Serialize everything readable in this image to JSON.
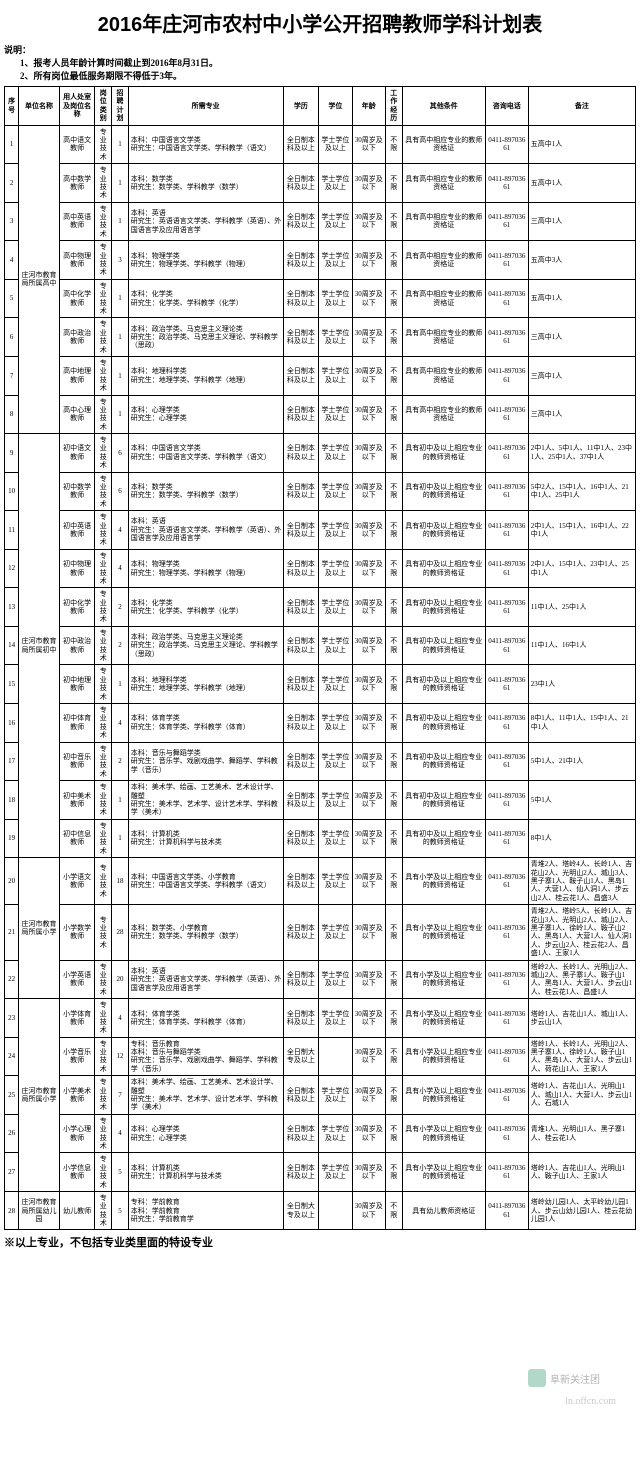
{
  "title": "2016年庄河市农村中小学公开招聘教师学科计划表",
  "notes": {
    "label": "说明：",
    "items": [
      "1、报考人员年龄计算时间截止到2016年8月31日。",
      "2、所有岗位最低服务期限不得低于3年。"
    ]
  },
  "headers": [
    "序号",
    "单位名称",
    "用人处室及岗位名称",
    "岗位类别",
    "招聘计划",
    "所需专业",
    "学历",
    "学位",
    "年龄",
    "工作经历",
    "其他条件",
    "咨询电话",
    "备注"
  ],
  "tel": "0411-89703661",
  "edu_full": "全日制本科及以上",
  "edu_zhuan": "全日制大专及以上",
  "deg": "学士学位及以上",
  "age": "30周岁及以下",
  "exp": "不限",
  "cond_gao": "具有高中相应专业的教师资格证",
  "cond_chu": "具有初中及以上相应专业的教师资格证",
  "cond_xiao": "具有小学及以上相应专业的教师资格证",
  "cond_you": "具有幼儿教师资格证",
  "rows": [
    {
      "seq": "1",
      "unit": "庄河市教育局所属高中",
      "unitspan": 8,
      "pos": "高中语文教师",
      "cat": "专业技术",
      "plan": "1",
      "major": "本科：中国语言文学类\n研究生：中国语言文学类、学科教学（语文）",
      "edu": "edu_full",
      "deg": true,
      "cond": "cond_gao",
      "rem": "五高中1人"
    },
    {
      "seq": "2",
      "pos": "高中数学教师",
      "cat": "专业技术",
      "plan": "1",
      "major": "本科：数学类\n研究生：数学类、学科教学（数学）",
      "edu": "edu_full",
      "deg": true,
      "cond": "cond_gao",
      "rem": "五高中1人"
    },
    {
      "seq": "3",
      "pos": "高中英语教师",
      "cat": "专业技术",
      "plan": "1",
      "major": "本科：英语\n研究生：英语语言文学类、学科教学（英语）、外国语言学及应用语言学",
      "edu": "edu_full",
      "deg": true,
      "cond": "cond_gao",
      "rem": "三高中1人"
    },
    {
      "seq": "4",
      "pos": "高中物理教师",
      "cat": "专业技术",
      "plan": "3",
      "major": "本科：物理学类\n研究生：物理学类、学科教学（物理）",
      "edu": "edu_full",
      "deg": true,
      "cond": "cond_gao",
      "rem": "五高中3人"
    },
    {
      "seq": "5",
      "pos": "高中化学教师",
      "cat": "专业技术",
      "plan": "1",
      "major": "本科：化学类\n研究生：化学类、学科教学（化学）",
      "edu": "edu_full",
      "deg": true,
      "cond": "cond_gao",
      "rem": "五高中1人"
    },
    {
      "seq": "6",
      "pos": "高中政治教师",
      "cat": "专业技术",
      "plan": "1",
      "major": "本科：政治学类、马克思主义理论类\n研究生：政治学类、马克思主义理论、学科教学（思政）",
      "edu": "edu_full",
      "deg": true,
      "cond": "cond_gao",
      "rem": "三高中1人"
    },
    {
      "seq": "7",
      "pos": "高中地理教师",
      "cat": "专业技术",
      "plan": "1",
      "major": "本科：地理科学类\n研究生：地理学类、学科教学（地理）",
      "edu": "edu_full",
      "deg": true,
      "cond": "cond_gao",
      "rem": "三高中1人"
    },
    {
      "seq": "8",
      "pos": "高中心理教师",
      "cat": "专业技术",
      "plan": "1",
      "major": "本科：心理学类\n研究生：心理学类",
      "edu": "edu_full",
      "deg": true,
      "cond": "cond_gao",
      "rem": "三高中1人"
    },
    {
      "seq": "9",
      "unit": "庄河市教育局所属初中",
      "unitspan": 11,
      "pos": "初中语文教师",
      "cat": "专业技术",
      "plan": "6",
      "major": "本科：中国语言文学类\n研究生：中国语言文学类、学科教学（语文）",
      "edu": "edu_full",
      "deg": true,
      "cond": "cond_chu",
      "rem": "2中1人、5中1人、11中1人、23中1人、25中1人、37中1人"
    },
    {
      "seq": "10",
      "pos": "初中数学教师",
      "cat": "专业技术",
      "plan": "6",
      "major": "本科：数学类\n研究生：数学类、学科教学（数学）",
      "edu": "edu_full",
      "deg": true,
      "cond": "cond_chu",
      "rem": "5中2人、15中1人、16中1人、21中1人、25中1人"
    },
    {
      "seq": "11",
      "pos": "初中英语教师",
      "cat": "专业技术",
      "plan": "4",
      "major": "本科：英语\n研究生：英语语言文学类、学科教学（英语）、外国语言学及应用语言学",
      "edu": "edu_full",
      "deg": true,
      "cond": "cond_chu",
      "rem": "2中1人、15中1人、16中1人、22中1人"
    },
    {
      "seq": "12",
      "pos": "初中物理教师",
      "cat": "专业技术",
      "plan": "4",
      "major": "本科：物理学类\n研究生：物理学类、学科教学（物理）",
      "edu": "edu_full",
      "deg": true,
      "cond": "cond_chu",
      "rem": "2中1人、15中1人、23中1人、25中1人"
    },
    {
      "seq": "13",
      "pos": "初中化学教师",
      "cat": "专业技术",
      "plan": "2",
      "major": "本科：化学类\n研究生：化学类、学科教学（化学）",
      "edu": "edu_full",
      "deg": true,
      "cond": "cond_chu",
      "rem": "11中1人、25中1人"
    },
    {
      "seq": "14",
      "pos": "初中政治教师",
      "cat": "专业技术",
      "plan": "2",
      "major": "本科：政治学类、马克思主义理论类\n研究生：政治学类、马克思主义理论、学科教学（思政）",
      "edu": "edu_full",
      "deg": true,
      "cond": "cond_chu",
      "rem": "11中1人、16中1人"
    },
    {
      "seq": "15",
      "pos": "初中地理教师",
      "cat": "专业技术",
      "plan": "1",
      "major": "本科：地理科学类\n研究生：地理学类、学科教学（地理）",
      "edu": "edu_full",
      "deg": true,
      "cond": "cond_chu",
      "rem": "23中1人"
    },
    {
      "seq": "16",
      "pos": "初中体育教师",
      "cat": "专业技术",
      "plan": "4",
      "major": "本科：体育学类\n研究生：体育学类、学科教学（体育）",
      "edu": "edu_full",
      "deg": true,
      "cond": "cond_chu",
      "rem": "8中1人、11中1人、15中1人、21中1人"
    },
    {
      "seq": "17",
      "pos": "初中音乐教师",
      "cat": "专业技术",
      "plan": "2",
      "major": "本科：音乐与舞蹈学类\n研究生：音乐学、戏剧戏曲学、舞蹈学、学科教学（音乐）",
      "edu": "edu_full",
      "deg": true,
      "cond": "cond_chu",
      "rem": "5中1人、21中1人"
    },
    {
      "seq": "18",
      "pos": "初中美术教师",
      "cat": "专业技术",
      "plan": "1",
      "major": "本科：美术学、绘画、工艺美术、艺术设计学、雕塑\n研究生：美术学、艺术学、设计艺术学、学科教学（美术）",
      "edu": "edu_full",
      "deg": true,
      "cond": "cond_chu",
      "rem": "5中1人"
    },
    {
      "seq": "19",
      "pos": "初中信息教师",
      "cat": "专业技术",
      "plan": "1",
      "major": "本科：计算机类\n研究生：计算机科学与技术类",
      "edu": "edu_full",
      "deg": true,
      "cond": "cond_chu",
      "rem": "8中1人"
    },
    {
      "seq": "20",
      "unit": "庄河市教育局所属小学",
      "unitspan": 3,
      "pos": "小学语文教师",
      "cat": "专业技术",
      "plan": "18",
      "major": "本科：中国语言文学类、小学教育\n研究生：中国语言文学类、学科教学（语文）",
      "edu": "edu_full",
      "deg": true,
      "cond": "cond_xiao",
      "rem": "青堆2人、塔岭4人、长岭1人、吉花山2人、光明山2人、城山3人、黑子寨1人、鞍子山1人、黑岛1人、大营1人、仙人洞1人、步云山2人、桂云花1人、昌盛3人"
    },
    {
      "seq": "21",
      "pos": "小学数学教师",
      "cat": "专业技术",
      "plan": "28",
      "major": "本科：数学类、小学教育\n研究生：数学类、学科教学（数学）",
      "edu": "edu_full",
      "deg": true,
      "cond": "cond_xiao",
      "rem": "青堆2人、塔岭5人、长岭1人、吉花山3人、光明山2人、城山2人、黑子寨1人、徐岭1人、鞍子山2人、黑岛1人、大营1人、仙人洞1人、步云山2人、桂云花2人、昌盛1人、王家1人"
    },
    {
      "seq": "22",
      "pos": "小学英语教师",
      "cat": "专业技术",
      "plan": "20",
      "major": "本科：英语\n研究生：英语语言文学类、学科教学（英语）、外国语言学及应用语言学",
      "edu": "edu_full",
      "deg": true,
      "cond": "cond_xiao",
      "rem": "塔岭2人、长岭1人、光明山2人、城山2人、黑子寨1人、鞍子山1人、黑岛1人、大营1人、步云山1人、桂云花1人、昌盛1人"
    },
    {
      "seq": "23",
      "unit": "庄河市教育局所属小学",
      "unitspan": 5,
      "pos": "小学体育教师",
      "cat": "专业技术",
      "plan": "4",
      "major": "本科：体育学类\n研究生：体育学类、学科教学（体育）",
      "edu": "edu_full",
      "deg": true,
      "cond": "cond_xiao",
      "rem": "塔岭1人、吉花山1人、城山1人、步云山1人"
    },
    {
      "seq": "24",
      "pos": "小学音乐教师",
      "cat": "专业技术",
      "plan": "12",
      "major": "专科：音乐教育\n本科：音乐与舞蹈学类\n研究生：音乐学、戏剧戏曲学、舞蹈学、学科教学（音乐）",
      "edu": "edu_zhuan",
      "deg": false,
      "cond": "cond_xiao",
      "rem": "塔岭1人、长岭1人、光明山2人、黑子寨1人、徐岭1人、鞍子山1人、黑岛1人、大营1人、步云山1人、荷花山1人、王家1人"
    },
    {
      "seq": "25",
      "pos": "小学美术教师",
      "cat": "专业技术",
      "plan": "7",
      "major": "本科：美术学、绘画、工艺美术、艺术设计学、雕塑\n研究生：美术学、艺术学、设计艺术学、学科教学（美术）",
      "edu": "edu_full",
      "deg": true,
      "cond": "cond_xiao",
      "rem": "塔岭1人、吉花山1人、光明山1人、城山1人、大营1人、步云山1人、石城1人"
    },
    {
      "seq": "26",
      "pos": "小学心理教师",
      "cat": "专业技术",
      "plan": "4",
      "major": "本科：心理学类\n研究生：心理学类",
      "edu": "edu_full",
      "deg": true,
      "cond": "cond_xiao",
      "rem": "青堆1人、光明山1人、黑子寨1人、桂云花1人"
    },
    {
      "seq": "27",
      "pos": "小学信息教师",
      "cat": "专业技术",
      "plan": "5",
      "major": "本科：计算机类\n研究生：计算机科学与技术类",
      "edu": "edu_full",
      "deg": true,
      "cond": "cond_xiao",
      "rem": "塔岭1人、吉花山1人、光明山1人、鞍子山1人、王家1人"
    },
    {
      "seq": "28",
      "unit": "庄河市教育局所属幼儿园",
      "unitspan": 1,
      "pos": "幼儿教师",
      "cat": "专业技术",
      "plan": "5",
      "major": "专科：学前教育\n本科：学前教育\n研究生：学前教育学",
      "edu": "edu_zhuan",
      "deg": false,
      "cond": "cond_you",
      "rem": "塔岭幼儿园1人、太平岭幼儿园1人、步云山幼儿园1人、桂云花幼儿园1人"
    }
  ],
  "footnote": "※以上专业，不包括专业类里面的特设专业",
  "watermark": "阜新关注团",
  "url": "ln.offcn.com"
}
